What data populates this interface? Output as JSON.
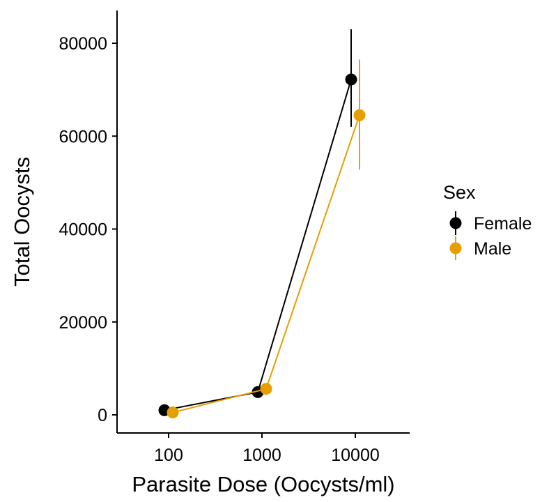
{
  "chart_data": {
    "type": "line",
    "title": "",
    "xlabel": "Parasite Dose (Oocysts/ml)",
    "ylabel": "Total Oocysts",
    "x_scale": "log10",
    "x_ticks": [
      100,
      1000,
      10000
    ],
    "x_tick_labels": [
      "100",
      "1000",
      "10000"
    ],
    "y_ticks": [
      0,
      20000,
      40000,
      60000,
      80000
    ],
    "y_tick_labels": [
      "0",
      "20000",
      "40000",
      "60000",
      "80000"
    ],
    "grid": false,
    "legend": {
      "title": "Sex",
      "position": "right"
    },
    "series": [
      {
        "name": "Female",
        "color": "#000000",
        "x": [
          100,
          1000,
          10000
        ],
        "y": [
          1000,
          4900,
          72200
        ],
        "ymin": [
          500,
          4000,
          62000
        ],
        "ymax": [
          1500,
          5800,
          83000
        ]
      },
      {
        "name": "Male",
        "color": "#E69F00",
        "x": [
          100,
          1000,
          10000
        ],
        "y": [
          500,
          5600,
          64500
        ],
        "ymin": [
          100,
          4800,
          52800
        ],
        "ymax": [
          900,
          6400,
          76500
        ]
      }
    ]
  }
}
